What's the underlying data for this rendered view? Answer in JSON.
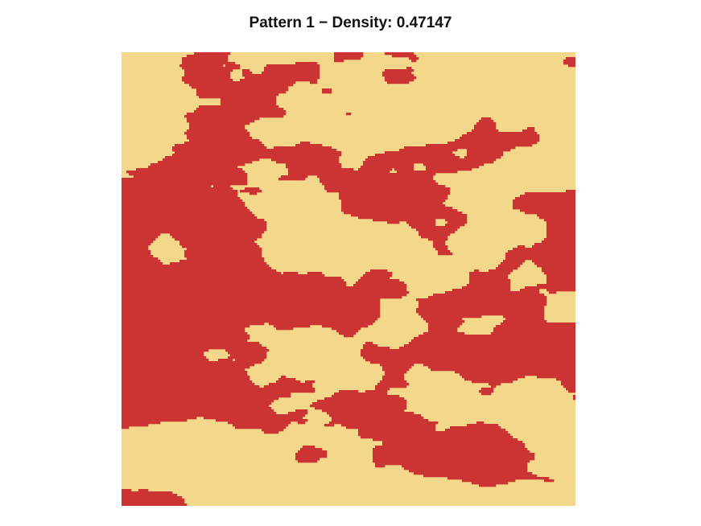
{
  "chart_data": {
    "type": "heatmap",
    "title": "Pattern 1 − Density: 0.47147",
    "density": 0.47147,
    "grid": false,
    "colors": {
      "background": "#f3d88c",
      "foreground": "#cc3333"
    }
  }
}
